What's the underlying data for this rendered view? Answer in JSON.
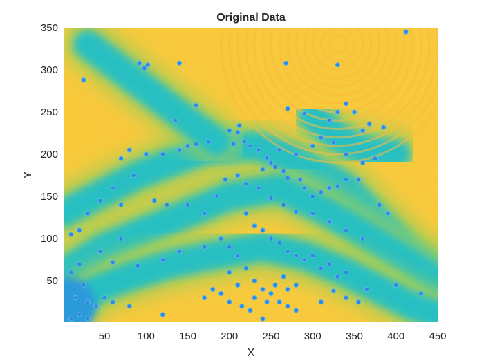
{
  "chart_data": {
    "type": "heatmap",
    "title": "Original Data",
    "xlabel": "X",
    "ylabel": "Y",
    "xlim": [
      1,
      450
    ],
    "ylim": [
      1,
      350
    ],
    "x_ticks": [
      50,
      100,
      150,
      200,
      250,
      300,
      350,
      400,
      450
    ],
    "y_ticks": [
      50,
      100,
      150,
      200,
      250,
      300,
      350
    ],
    "grid": false,
    "legend": "none",
    "colormap": "parula (yellow-orange dominant, cyan-green troughs)",
    "colors": {
      "high": "#f9c93c",
      "high_band": "#fbb93f",
      "mid": "#9ecf5a",
      "low": "#22bfc8",
      "lowest": "#2b9ad9",
      "point_marker": "#2f88e0"
    },
    "cold_bands": [
      {
        "path": [
          [
            1,
            130
          ],
          [
            40,
            150
          ],
          [
            90,
            175
          ],
          [
            130,
            190
          ],
          [
            170,
            205
          ],
          [
            230,
            210
          ],
          [
            290,
            190
          ],
          [
            340,
            160
          ],
          [
            380,
            120
          ],
          [
            420,
            80
          ],
          [
            450,
            60
          ]
        ]
      },
      {
        "path": [
          [
            1,
            60
          ],
          [
            50,
            90
          ],
          [
            100,
            110
          ],
          [
            150,
            130
          ],
          [
            200,
            150
          ],
          [
            260,
            160
          ],
          [
            320,
            130
          ],
          [
            370,
            100
          ],
          [
            420,
            70
          ],
          [
            450,
            50
          ]
        ]
      },
      {
        "path": [
          [
            1,
            10
          ],
          [
            40,
            40
          ],
          [
            80,
            55
          ],
          [
            130,
            70
          ],
          [
            180,
            80
          ],
          [
            240,
            90
          ],
          [
            290,
            80
          ],
          [
            340,
            60
          ],
          [
            380,
            40
          ],
          [
            420,
            20
          ],
          [
            450,
            10
          ]
        ]
      },
      {
        "path": [
          [
            30,
            330
          ],
          [
            70,
            300
          ],
          [
            110,
            270
          ],
          [
            150,
            240
          ],
          [
            185,
            215
          ]
        ]
      },
      {
        "path": [
          [
            300,
            245
          ],
          [
            330,
            220
          ],
          [
            360,
            205
          ],
          [
            400,
            200
          ]
        ]
      }
    ],
    "warm_spots": [
      {
        "x": 330,
        "y": 330,
        "r": 120
      },
      {
        "x": 450,
        "y": 170,
        "r": 35
      },
      {
        "x": 30,
        "y": 5,
        "r": 15
      },
      {
        "x": 165,
        "y": 5,
        "r": 60
      },
      {
        "x": 300,
        "y": 5,
        "r": 45
      },
      {
        "x": 120,
        "y": 280,
        "r": 60
      }
    ],
    "points": [
      [
        25,
        288
      ],
      [
        92,
        308
      ],
      [
        98,
        302
      ],
      [
        102,
        306
      ],
      [
        140,
        308
      ],
      [
        268,
        308
      ],
      [
        330,
        306
      ],
      [
        412,
        345
      ],
      [
        160,
        258
      ],
      [
        135,
        240
      ],
      [
        270,
        254
      ],
      [
        290,
        248
      ],
      [
        340,
        260
      ],
      [
        330,
        250
      ],
      [
        320,
        240
      ],
      [
        350,
        250
      ],
      [
        360,
        228
      ],
      [
        385,
        232
      ],
      [
        368,
        236
      ],
      [
        212,
        234
      ],
      [
        210,
        226
      ],
      [
        200,
        228
      ],
      [
        218,
        215
      ],
      [
        205,
        212
      ],
      [
        175,
        215
      ],
      [
        160,
        212
      ],
      [
        150,
        210
      ],
      [
        140,
        205
      ],
      [
        120,
        200
      ],
      [
        100,
        200
      ],
      [
        80,
        205
      ],
      [
        70,
        195
      ],
      [
        245,
        196
      ],
      [
        250,
        190
      ],
      [
        255,
        185
      ],
      [
        240,
        182
      ],
      [
        265,
        180
      ],
      [
        270,
        172
      ],
      [
        285,
        170
      ],
      [
        290,
        160
      ],
      [
        300,
        150
      ],
      [
        310,
        155
      ],
      [
        320,
        160
      ],
      [
        330,
        162
      ],
      [
        340,
        170
      ],
      [
        355,
        170
      ],
      [
        225,
        210
      ],
      [
        235,
        205
      ],
      [
        260,
        205
      ],
      [
        280,
        200
      ],
      [
        300,
        210
      ],
      [
        310,
        220
      ],
      [
        325,
        214
      ],
      [
        340,
        200
      ],
      [
        360,
        190
      ],
      [
        375,
        195
      ],
      [
        85,
        175
      ],
      [
        60,
        160
      ],
      [
        45,
        145
      ],
      [
        30,
        130
      ],
      [
        70,
        140
      ],
      [
        20,
        110
      ],
      [
        10,
        105
      ],
      [
        45,
        85
      ],
      [
        70,
        100
      ],
      [
        20,
        70
      ],
      [
        10,
        60
      ],
      [
        25,
        45
      ],
      [
        15,
        30
      ],
      [
        20,
        10
      ],
      [
        10,
        5
      ],
      [
        30,
        5
      ],
      [
        110,
        145
      ],
      [
        125,
        140
      ],
      [
        150,
        140
      ],
      [
        170,
        130
      ],
      [
        185,
        150
      ],
      [
        195,
        170
      ],
      [
        210,
        175
      ],
      [
        220,
        165
      ],
      [
        235,
        160
      ],
      [
        250,
        148
      ],
      [
        265,
        140
      ],
      [
        280,
        132
      ],
      [
        300,
        130
      ],
      [
        320,
        120
      ],
      [
        340,
        110
      ],
      [
        360,
        100
      ],
      [
        380,
        140
      ],
      [
        390,
        130
      ],
      [
        220,
        130
      ],
      [
        230,
        115
      ],
      [
        240,
        110
      ],
      [
        250,
        100
      ],
      [
        260,
        95
      ],
      [
        270,
        85
      ],
      [
        280,
        80
      ],
      [
        290,
        75
      ],
      [
        300,
        80
      ],
      [
        310,
        65
      ],
      [
        320,
        70
      ],
      [
        330,
        55
      ],
      [
        340,
        60
      ],
      [
        60,
        72
      ],
      [
        90,
        68
      ],
      [
        120,
        75
      ],
      [
        140,
        85
      ],
      [
        170,
        90
      ],
      [
        190,
        100
      ],
      [
        200,
        90
      ],
      [
        210,
        80
      ],
      [
        220,
        65
      ],
      [
        230,
        50
      ],
      [
        240,
        40
      ],
      [
        250,
        35
      ],
      [
        260,
        25
      ],
      [
        270,
        20
      ],
      [
        280,
        15
      ],
      [
        200,
        60
      ],
      [
        210,
        45
      ],
      [
        230,
        30
      ],
      [
        245,
        25
      ],
      [
        255,
        45
      ],
      [
        265,
        55
      ],
      [
        270,
        40
      ],
      [
        280,
        45
      ],
      [
        310,
        25
      ],
      [
        325,
        38
      ],
      [
        340,
        30
      ],
      [
        355,
        25
      ],
      [
        365,
        40
      ],
      [
        400,
        45
      ],
      [
        430,
        35
      ],
      [
        170,
        30
      ],
      [
        180,
        40
      ],
      [
        190,
        35
      ],
      [
        200,
        25
      ],
      [
        215,
        20
      ],
      [
        225,
        15
      ],
      [
        240,
        5
      ],
      [
        120,
        10
      ],
      [
        80,
        20
      ],
      [
        60,
        25
      ],
      [
        50,
        30
      ],
      [
        40,
        20
      ],
      [
        30,
        25
      ]
    ]
  }
}
